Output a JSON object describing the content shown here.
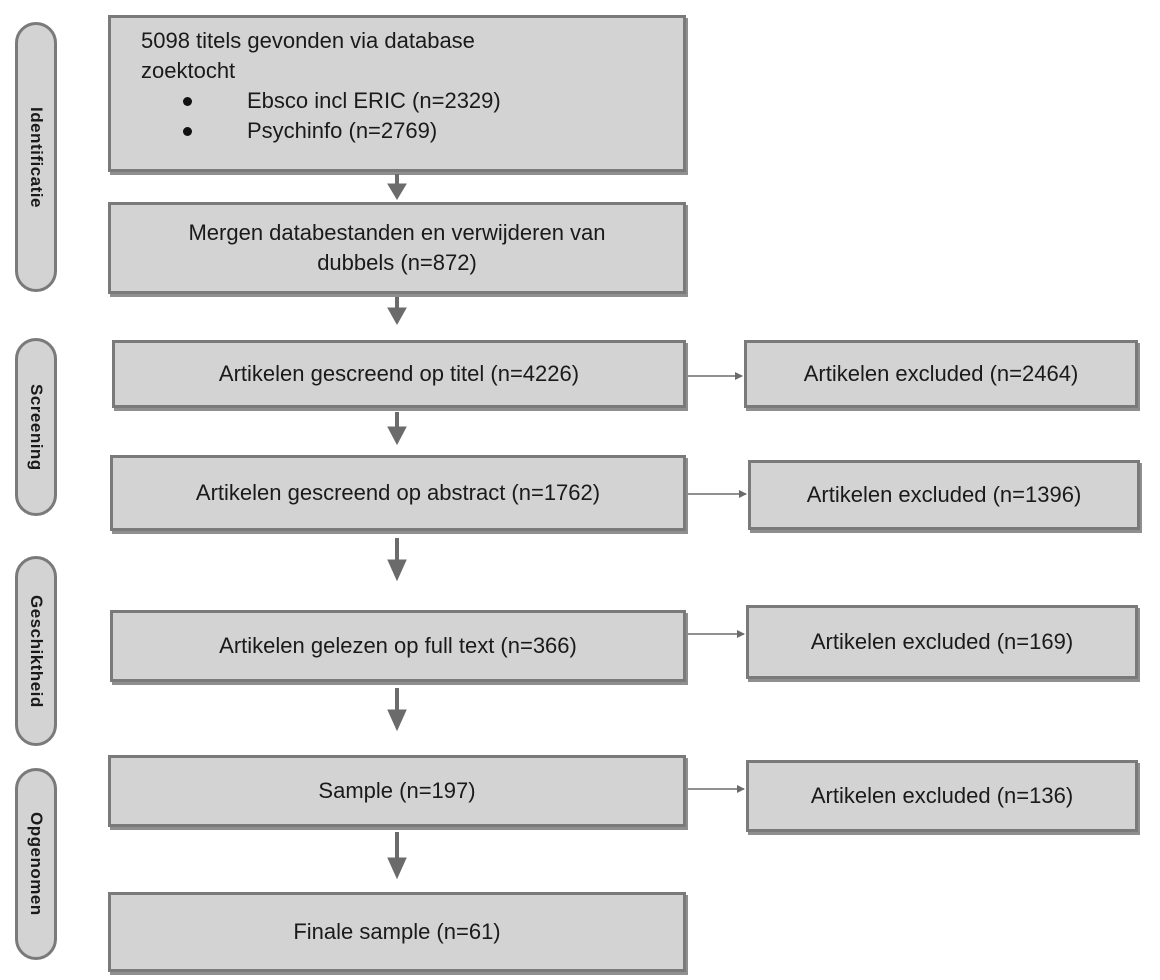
{
  "phases": {
    "identificatie": "Identificatie",
    "screening": "Screening",
    "geschiktheid": "Geschiktheid",
    "opgenomen": "Opgenomen"
  },
  "identification": {
    "line1": "5098 titels gevonden via database",
    "line2": "zoektocht",
    "sources": [
      "Ebsco incl ERIC (n=2329)",
      "Psychinfo (n=2769)"
    ]
  },
  "steps": {
    "merge": "Mergen databestanden en verwijderen van dubbels (n=872)",
    "title_screen": "Artikelen gescreend op titel (n=4226)",
    "abstract_screen": "Artikelen gescreend op abstract (n=1762)",
    "full_text": "Artikelen gelezen op full text  (n=366)",
    "sample": "Sample (n=197)",
    "final_sample": "Finale sample (n=61)"
  },
  "excluded": {
    "after_title": "Artikelen excluded (n=2464)",
    "after_abstract": "Artikelen excluded (n=1396)",
    "after_full_text": "Artikelen excluded (n=169)",
    "after_sample": "Artikelen excluded (n=136)"
  },
  "colors": {
    "box_fill": "#d3d3d3",
    "box_border": "#7a7a7a",
    "arrow": "#6b6b6b"
  }
}
